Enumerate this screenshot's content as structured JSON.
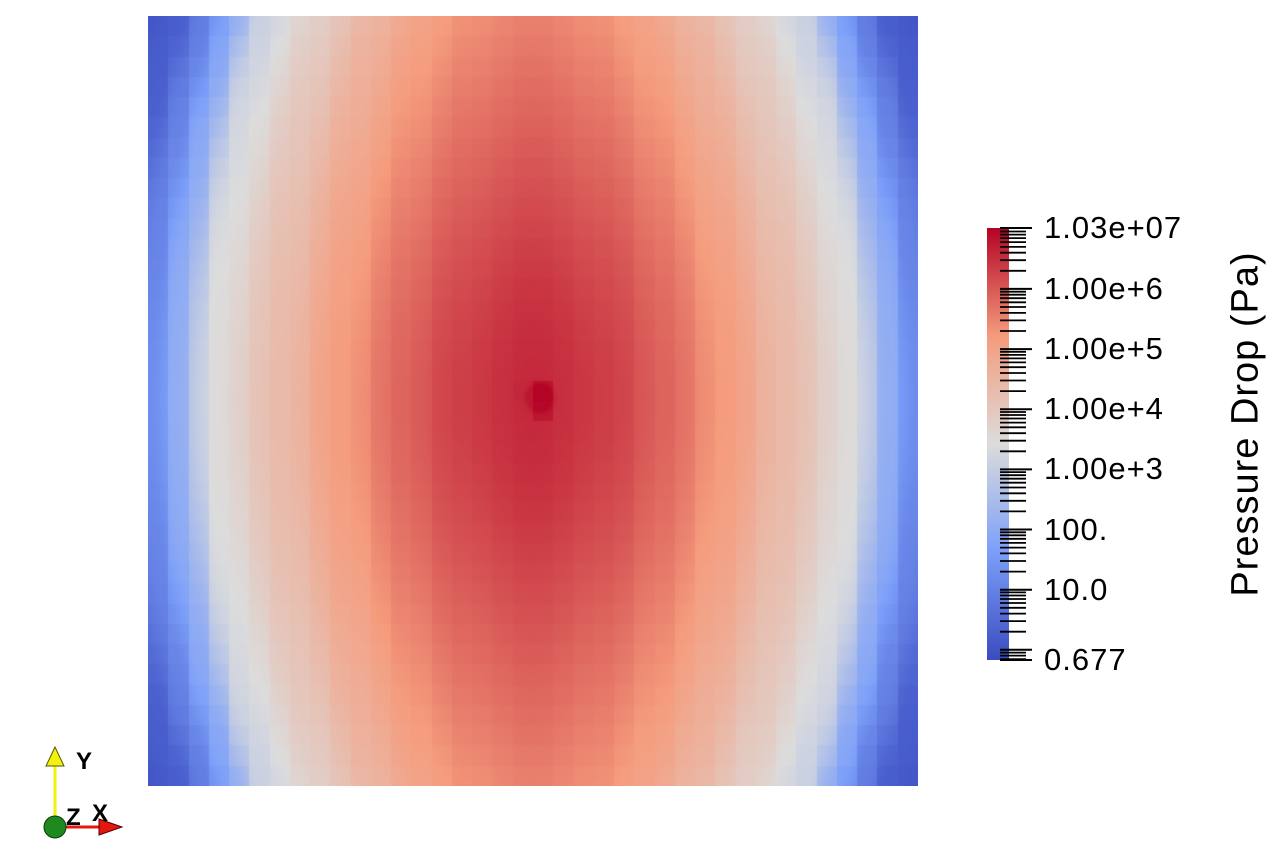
{
  "view": {
    "background": "#ffffff"
  },
  "colorbar": {
    "title": "Pressure Drop (Pa)",
    "scale": "log",
    "min": 0.677,
    "max": 10300000,
    "tick_labels": [
      {
        "label": "1.03e+07",
        "value": 10300000
      },
      {
        "label": "1.00e+6",
        "value": 1000000
      },
      {
        "label": "1.00e+5",
        "value": 100000
      },
      {
        "label": "1.00e+4",
        "value": 10000
      },
      {
        "label": "1.00e+3",
        "value": 1000
      },
      {
        "label": "100.",
        "value": 100
      },
      {
        "label": "10.0",
        "value": 10
      },
      {
        "label": "0.677",
        "value": 0.677
      }
    ],
    "unlabeled_major_ticks": [
      1
    ],
    "colormap": {
      "name": "cool-to-warm-diverging",
      "stops": [
        "#3B4CC0",
        "#7C9FF9",
        "#DCDCDC",
        "#F59C7D",
        "#B40426"
      ]
    }
  },
  "orientation_axes": {
    "x": {
      "label": "X",
      "color": "#E4180F"
    },
    "y": {
      "label": "Y",
      "color": "#F2F20C"
    },
    "z": {
      "label": "Z",
      "color": "#1E8A1E"
    }
  },
  "chart_data": {
    "type": "heatmap",
    "title": "",
    "field": "Pressure Drop (Pa)",
    "colorbar_title": "Pressure Drop (Pa)",
    "value_range": [
      0.677,
      10300000
    ],
    "color_scale": "logarithmic, diverging cool-to-warm (blue = low pressure, red = high pressure)",
    "colorbar_tick_values": [
      10300000,
      1000000,
      100000,
      10000,
      1000,
      100,
      10,
      0.677
    ],
    "colorbar_tick_labels": [
      "1.03e+07",
      "1.00e+6",
      "1.00e+5",
      "1.00e+4",
      "1.00e+3",
      "100.",
      "10.0",
      "0.677"
    ],
    "legend_position": "right",
    "description": "Square 2D domain rendered with a diverging blue-white-red colormap. Pressure is highest (dark red, 1.03e+07 Pa) at a small point source just right of the domain center, stays high (red) through a broad central vertical region, transitions through white bands that bow outward at mid-height, and drops to low values (blue, minimum 0.677 Pa) along the left and right edges, darkest at the four corners. Subtle vertical mesh-cell banding is visible.",
    "features": {
      "peak": {
        "value": 10300000,
        "position_fraction_xy": [
          0.509,
          0.496
        ]
      },
      "minimum": {
        "value": 0.677,
        "location": "left and right edges, darkest at corners"
      }
    },
    "render_model": {
      "grid_cells": 38,
      "source": [
        0.509,
        0.496
      ],
      "profile_z": [
        0,
        0.2,
        0.34,
        0.5,
        0.65,
        0.83,
        0.93,
        1.0,
        1.08,
        1.2
      ],
      "profile_t": [
        0.88,
        0.85,
        0.8,
        0.72,
        0.62,
        0.5,
        0.3,
        0.17,
        0.06,
        0.02
      ],
      "v_squeeze": 0.15,
      "v_fade": 0.1,
      "broad_bump": {
        "amp": 0.06,
        "sigma": 0.2
      },
      "spot_bump": {
        "amp": 0.6,
        "sigma": 0.008
      }
    }
  }
}
